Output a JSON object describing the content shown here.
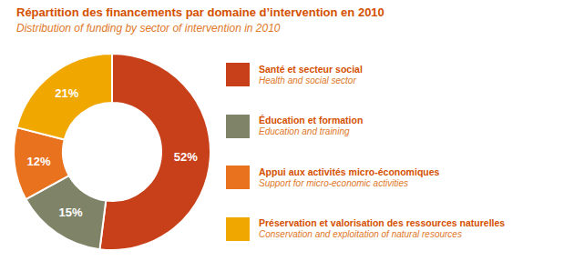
{
  "chart_data": {
    "type": "pie",
    "title": "Répartition des financements par domaine d’intervention en 2010",
    "subtitle": "Distribution of funding by sector of intervention in 2010",
    "categories": [
      "Santé et secteur social\nHealth and social sector",
      "Éducation et formation\nEducation and training",
      "Appui aux activités micro-économiques\nSupport for micro-economic activities",
      "Préservation et valorisation des ressources naturelles\nConservation and exploitation of natural resources"
    ],
    "values": [
      52,
      15,
      12,
      21
    ],
    "value_labels": [
      "52%",
      "15%",
      "12%",
      "21%"
    ],
    "colors": [
      "#c8401a",
      "#7f8468",
      "#e8721e",
      "#f0a800"
    ],
    "data_labels": true,
    "legend": "right"
  }
}
